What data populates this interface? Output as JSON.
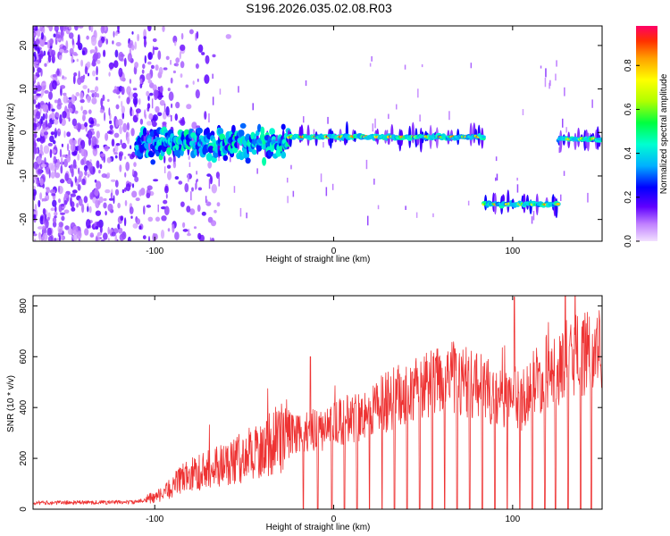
{
  "title": "S196.2026.035.02.08.R03",
  "chart_data": [
    {
      "type": "heatmap",
      "name": "spectrogram",
      "xlabel": "Height of straight line (km)",
      "ylabel": "Frequency (Hz)",
      "xlim": [
        -168,
        150
      ],
      "ylim": [
        -25,
        24.5
      ],
      "xticks": [
        -100,
        0,
        100
      ],
      "yticks": [
        -20,
        -10,
        0,
        10,
        20
      ],
      "tracks": [
        {
          "x0": -110,
          "x1": -25,
          "f": -2.5,
          "spread": 3.0,
          "peak": 0.45
        },
        {
          "x0": -25,
          "x1": 84,
          "f": -1.0,
          "spread": 1.2,
          "peak": 0.95
        },
        {
          "x0": 84,
          "x1": 126,
          "f": -16.5,
          "spread": 1.2,
          "peak": 0.9
        },
        {
          "x0": 126,
          "x1": 150,
          "f": -1.5,
          "spread": 1.0,
          "peak": 0.9
        }
      ],
      "colorbar": {
        "label": "Normalized spectral amplitude",
        "range": [
          0,
          0.98
        ],
        "ticks": [
          0.0,
          0.2,
          0.4,
          0.6,
          0.8
        ]
      }
    },
    {
      "type": "line",
      "name": "snr",
      "xlabel": "Height of straight line (km)",
      "ylabel": "SNR (10 * v/v)",
      "xlim": [
        -168,
        150
      ],
      "ylim": [
        0,
        840
      ],
      "xticks": [
        -100,
        0,
        100
      ],
      "yticks": [
        0,
        200,
        400,
        600,
        800
      ],
      "color": "#ee3333",
      "envelope": [
        {
          "x": -168,
          "y": 25
        },
        {
          "x": -110,
          "y": 28
        },
        {
          "x": -95,
          "y": 60
        },
        {
          "x": -85,
          "y": 120
        },
        {
          "x": -70,
          "y": 160
        },
        {
          "x": -55,
          "y": 190
        },
        {
          "x": -40,
          "y": 240
        },
        {
          "x": -25,
          "y": 300
        },
        {
          "x": -15,
          "y": 300
        },
        {
          "x": 0,
          "y": 330
        },
        {
          "x": 10,
          "y": 360
        },
        {
          "x": 20,
          "y": 390
        },
        {
          "x": 35,
          "y": 440
        },
        {
          "x": 50,
          "y": 480
        },
        {
          "x": 65,
          "y": 520
        },
        {
          "x": 80,
          "y": 490
        },
        {
          "x": 95,
          "y": 430
        },
        {
          "x": 105,
          "y": 430
        },
        {
          "x": 115,
          "y": 520
        },
        {
          "x": 130,
          "y": 580
        },
        {
          "x": 150,
          "y": 640
        }
      ],
      "spikes": [
        {
          "x": -13,
          "y": 600
        },
        {
          "x": 101,
          "y": 835
        },
        {
          "x": 147,
          "y": 710
        }
      ],
      "dropouts": [
        -17,
        -9,
        -1,
        6,
        13,
        20,
        27,
        34,
        41,
        48,
        55,
        62,
        69,
        76,
        83,
        90,
        97,
        104,
        111,
        118,
        124,
        131,
        138,
        144
      ]
    }
  ]
}
